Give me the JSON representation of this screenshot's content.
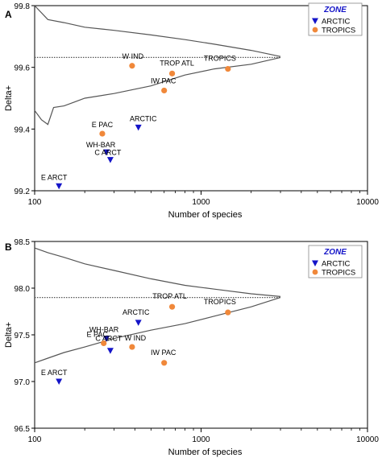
{
  "colors": {
    "arctic": "#1414c8",
    "tropics": "#f0883a",
    "axis": "#000000",
    "line": "#555555",
    "zone_title": "#1414c8"
  },
  "chart_data": [
    {
      "panel_label": "A",
      "type": "scatter",
      "xlabel": "Number of species",
      "ylabel": "Delta+",
      "xscale": "log",
      "xlim": [
        100,
        10000
      ],
      "ylim": [
        99.2,
        99.8
      ],
      "xticks": [
        100,
        1000,
        10000
      ],
      "xtick_labels": [
        "100",
        "1000",
        "10000"
      ],
      "yticks": [
        99.2,
        99.4,
        99.6,
        99.8
      ],
      "ytick_labels": [
        "99.2",
        "99.4",
        "99.6",
        "99.8"
      ],
      "grid": false,
      "legend": {
        "title": "ZONE",
        "placement": "top-right",
        "entries": [
          {
            "label": "ARCTIC",
            "marker": "triangle-down",
            "color_key": "arctic"
          },
          {
            "label": "TROPICS",
            "marker": "circle",
            "color_key": "tropics"
          }
        ]
      },
      "series": [
        {
          "name": "ARCTIC",
          "marker": "triangle-down",
          "color_key": "arctic",
          "points": [
            {
              "label": "ARCTIC",
              "x": 420,
              "y": 99.405
            },
            {
              "label": "WH-BAR",
              "x": 270,
              "y": 99.325
            },
            {
              "label": "C ARCT",
              "x": 285,
              "y": 99.3
            },
            {
              "label": "E ARCT",
              "x": 140,
              "y": 99.215
            }
          ]
        },
        {
          "name": "TROPICS",
          "marker": "circle",
          "color_key": "tropics",
          "points": [
            {
              "label": "W IND",
              "x": 385,
              "y": 99.605
            },
            {
              "label": "TROP ATL",
              "x": 670,
              "y": 99.58
            },
            {
              "label": "IW PAC",
              "x": 600,
              "y": 99.525
            },
            {
              "label": "TROPICS",
              "x": 1450,
              "y": 99.595
            },
            {
              "label": "E PAC",
              "x": 255,
              "y": 99.385
            }
          ]
        }
      ],
      "funnel": {
        "mean": 99.632,
        "upper": [
          [
            100,
            99.8
          ],
          [
            120,
            99.755
          ],
          [
            150,
            99.745
          ],
          [
            200,
            99.73
          ],
          [
            300,
            99.72
          ],
          [
            500,
            99.705
          ],
          [
            800,
            99.69
          ],
          [
            1200,
            99.675
          ],
          [
            2000,
            99.655
          ],
          [
            3000,
            99.635
          ]
        ],
        "lower": [
          [
            100,
            99.46
          ],
          [
            110,
            99.43
          ],
          [
            120,
            99.415
          ],
          [
            130,
            99.47
          ],
          [
            150,
            99.475
          ],
          [
            200,
            99.5
          ],
          [
            300,
            99.515
          ],
          [
            500,
            99.54
          ],
          [
            800,
            99.575
          ],
          [
            1200,
            99.595
          ],
          [
            2000,
            99.61
          ],
          [
            3000,
            99.632
          ]
        ]
      }
    },
    {
      "panel_label": "B",
      "type": "scatter",
      "xlabel": "Number of species",
      "ylabel": "Delta+",
      "xscale": "log",
      "xlim": [
        100,
        10000
      ],
      "ylim": [
        96.5,
        98.5
      ],
      "xticks": [
        100,
        1000,
        10000
      ],
      "xtick_labels": [
        "100",
        "1000",
        "10000"
      ],
      "yticks": [
        96.5,
        97.0,
        97.5,
        98.0,
        98.5
      ],
      "ytick_labels": [
        "96.5",
        "97.0",
        "97.5",
        "98.0",
        "98.5"
      ],
      "grid": false,
      "legend": {
        "title": "ZONE",
        "placement": "top-right",
        "entries": [
          {
            "label": "ARCTIC",
            "marker": "triangle-down",
            "color_key": "arctic"
          },
          {
            "label": "TROPICS",
            "marker": "circle",
            "color_key": "tropics"
          }
        ]
      },
      "series": [
        {
          "name": "ARCTIC",
          "marker": "triangle-down",
          "color_key": "arctic",
          "points": [
            {
              "label": "ARCTIC",
              "x": 420,
              "y": 97.63
            },
            {
              "label": "WH-BAR",
              "x": 270,
              "y": 97.46
            },
            {
              "label": "C ARCT",
              "x": 285,
              "y": 97.33
            },
            {
              "label": "E ARCT",
              "x": 140,
              "y": 97.0
            }
          ]
        },
        {
          "name": "TROPICS",
          "marker": "circle",
          "color_key": "tropics",
          "points": [
            {
              "label": "TROP ATL",
              "x": 670,
              "y": 97.8
            },
            {
              "label": "TROPICS",
              "x": 1450,
              "y": 97.74
            },
            {
              "label": "E PAC",
              "x": 260,
              "y": 97.41
            },
            {
              "label": "W IND",
              "x": 385,
              "y": 97.37
            },
            {
              "label": "IW PAC",
              "x": 600,
              "y": 97.2
            }
          ]
        }
      ],
      "funnel": {
        "mean": 97.9,
        "upper": [
          [
            100,
            98.43
          ],
          [
            120,
            98.38
          ],
          [
            150,
            98.33
          ],
          [
            200,
            98.26
          ],
          [
            300,
            98.19
          ],
          [
            500,
            98.1
          ],
          [
            800,
            98.03
          ],
          [
            1200,
            97.99
          ],
          [
            2000,
            97.94
          ],
          [
            3000,
            97.91
          ]
        ],
        "lower": [
          [
            100,
            97.2
          ],
          [
            120,
            97.25
          ],
          [
            150,
            97.31
          ],
          [
            200,
            97.37
          ],
          [
            300,
            97.46
          ],
          [
            500,
            97.55
          ],
          [
            800,
            97.62
          ],
          [
            1200,
            97.7
          ],
          [
            2000,
            97.8
          ],
          [
            3000,
            97.9
          ]
        ]
      }
    }
  ]
}
